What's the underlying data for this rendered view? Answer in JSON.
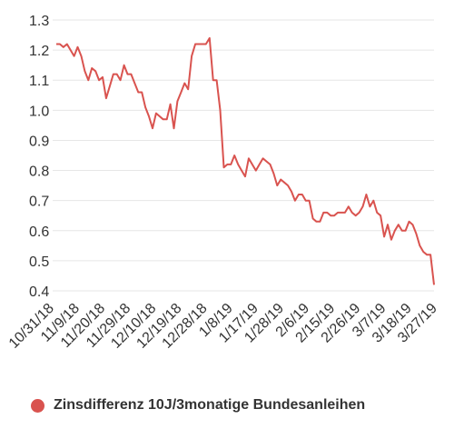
{
  "chart_data": {
    "type": "line",
    "title": "",
    "xlabel": "",
    "ylabel": "",
    "ylim": [
      0.35,
      1.35
    ],
    "yticks": [
      "1.3",
      "1.2",
      "1.1",
      "1.0",
      "0.9",
      "0.8",
      "0.7",
      "0.6",
      "0.5",
      "0.4"
    ],
    "xticks": [
      "10/31/18",
      "11/9/18",
      "11/20/18",
      "11/29/18",
      "12/10/18",
      "12/19/18",
      "12/28/18",
      "1/8/19",
      "1/17/19",
      "1/28/19",
      "2/6/19",
      "2/15/19",
      "2/26/19",
      "3/7/19",
      "3/18/19",
      "3/27/19"
    ],
    "grid": true,
    "legend_position": "bottom-left",
    "series": [
      {
        "name": "Zinsdifferenz 10J/3monatige Bundesanleihen",
        "color": "#d9534f",
        "values": [
          1.22,
          1.22,
          1.21,
          1.22,
          1.2,
          1.18,
          1.21,
          1.18,
          1.13,
          1.1,
          1.14,
          1.13,
          1.1,
          1.11,
          1.04,
          1.08,
          1.12,
          1.12,
          1.1,
          1.15,
          1.12,
          1.12,
          1.09,
          1.06,
          1.06,
          1.01,
          0.98,
          0.94,
          0.99,
          0.98,
          0.97,
          0.97,
          1.02,
          0.94,
          1.03,
          1.06,
          1.09,
          1.07,
          1.18,
          1.22,
          1.22,
          1.22,
          1.22,
          1.24,
          1.1,
          1.1,
          1.0,
          0.81,
          0.82,
          0.82,
          0.85,
          0.82,
          0.8,
          0.78,
          0.84,
          0.82,
          0.8,
          0.82,
          0.84,
          0.83,
          0.82,
          0.79,
          0.75,
          0.77,
          0.76,
          0.75,
          0.73,
          0.7,
          0.72,
          0.72,
          0.7,
          0.7,
          0.64,
          0.63,
          0.63,
          0.66,
          0.66,
          0.65,
          0.65,
          0.66,
          0.66,
          0.66,
          0.68,
          0.66,
          0.65,
          0.66,
          0.68,
          0.72,
          0.68,
          0.7,
          0.66,
          0.65,
          0.58,
          0.62,
          0.57,
          0.6,
          0.62,
          0.6,
          0.6,
          0.63,
          0.62,
          0.59,
          0.55,
          0.53,
          0.52,
          0.52,
          0.42
        ]
      }
    ]
  }
}
